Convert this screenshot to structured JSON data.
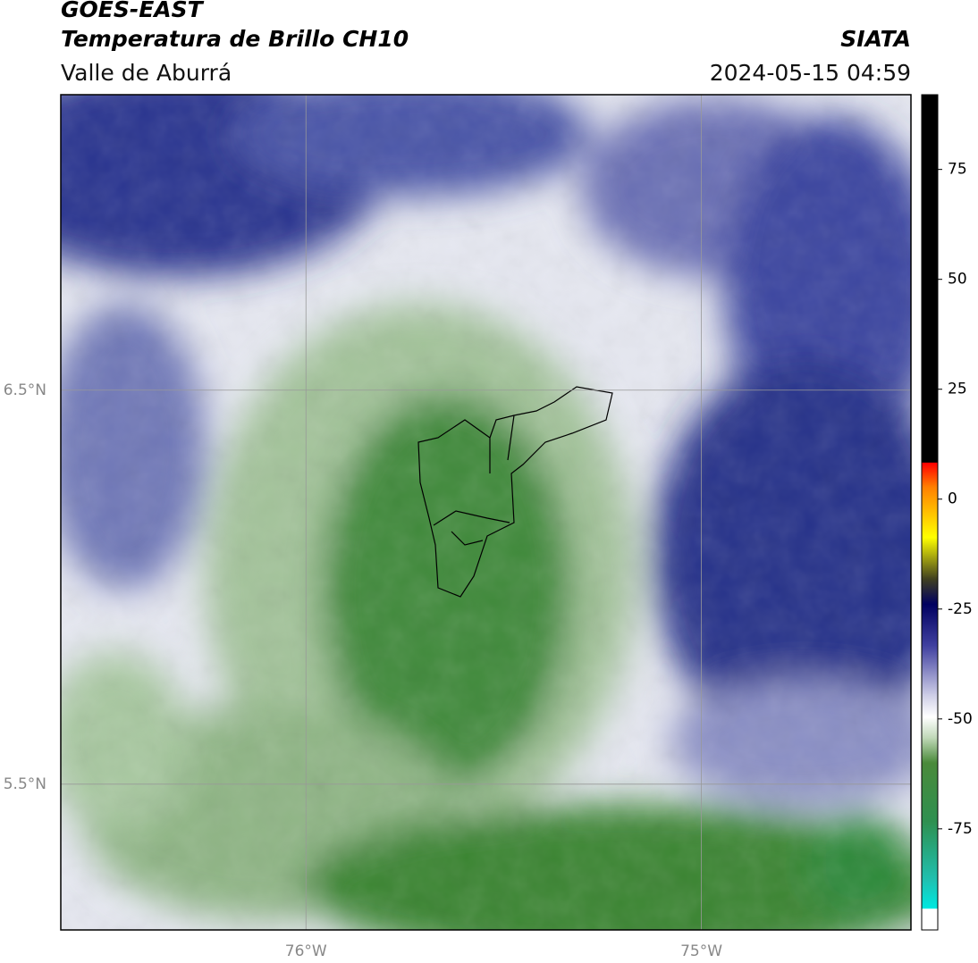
{
  "header": {
    "title": "GOES-EAST",
    "subtitle": "Temperatura de Brillo CH10",
    "region": "Valle de Aburrá",
    "source": "SIATA",
    "timestamp": "2024-05-15 04:59"
  },
  "map": {
    "xlim": [
      -76.62,
      -74.47
    ],
    "ylim": [
      5.13,
      7.25
    ],
    "xticks": [
      {
        "value": -76,
        "label": "76°W"
      },
      {
        "value": -75,
        "label": "75°W"
      }
    ],
    "yticks": [
      {
        "value": 5.5,
        "label": "5.5°N"
      },
      {
        "value": 6.5,
        "label": "6.5°N"
      }
    ],
    "grid": true
  },
  "colorbar": {
    "lim": [
      -98,
      92
    ],
    "ticks": [
      -75,
      -50,
      -25,
      0,
      25,
      50,
      75
    ]
  }
}
